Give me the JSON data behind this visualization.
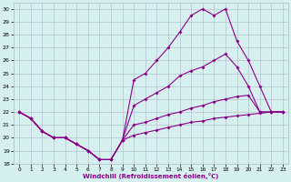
{
  "xlabel": "Windchill (Refroidissement éolien,°C)",
  "x": [
    0,
    1,
    2,
    3,
    4,
    5,
    6,
    7,
    8,
    9,
    10,
    11,
    12,
    13,
    14,
    15,
    16,
    17,
    18,
    19,
    20,
    21,
    22,
    23
  ],
  "line_upper": [
    22,
    21.5,
    20.5,
    20.0,
    20.0,
    19.5,
    19.0,
    18.3,
    18.3,
    19.8,
    24.5,
    25.0,
    26.0,
    27.0,
    28.2,
    29.5,
    30.0,
    29.5,
    30.0,
    27.5,
    26.0,
    24.0,
    22.0,
    22.0
  ],
  "line_mid_upper": [
    22,
    21.5,
    20.5,
    20.0,
    20.0,
    19.5,
    19.0,
    18.3,
    18.3,
    19.8,
    22.5,
    23.0,
    23.5,
    24.0,
    24.8,
    25.2,
    25.5,
    26.0,
    26.5,
    25.5,
    24.0,
    22.0,
    22.0,
    22.0
  ],
  "line_mid_lower": [
    22,
    21.5,
    20.5,
    20.0,
    20.0,
    19.5,
    19.0,
    18.3,
    18.3,
    19.8,
    21.0,
    21.2,
    21.5,
    21.8,
    22.0,
    22.3,
    22.5,
    22.8,
    23.0,
    23.2,
    23.3,
    22.0,
    22.0,
    22.0
  ],
  "line_lower": [
    22,
    21.5,
    20.5,
    20.0,
    20.0,
    19.5,
    19.0,
    18.3,
    18.3,
    19.8,
    20.2,
    20.4,
    20.6,
    20.8,
    21.0,
    21.2,
    21.3,
    21.5,
    21.6,
    21.7,
    21.8,
    21.9,
    22.0,
    22.0
  ],
  "line_color": "#8b008b",
  "bg_color": "#d6f0f0",
  "grid_color": "#b0b8cc",
  "ylim": [
    18,
    30.5
  ],
  "yticks": [
    18,
    19,
    20,
    21,
    22,
    23,
    24,
    25,
    26,
    27,
    28,
    29,
    30
  ],
  "xlim": [
    -0.5,
    23.5
  ]
}
